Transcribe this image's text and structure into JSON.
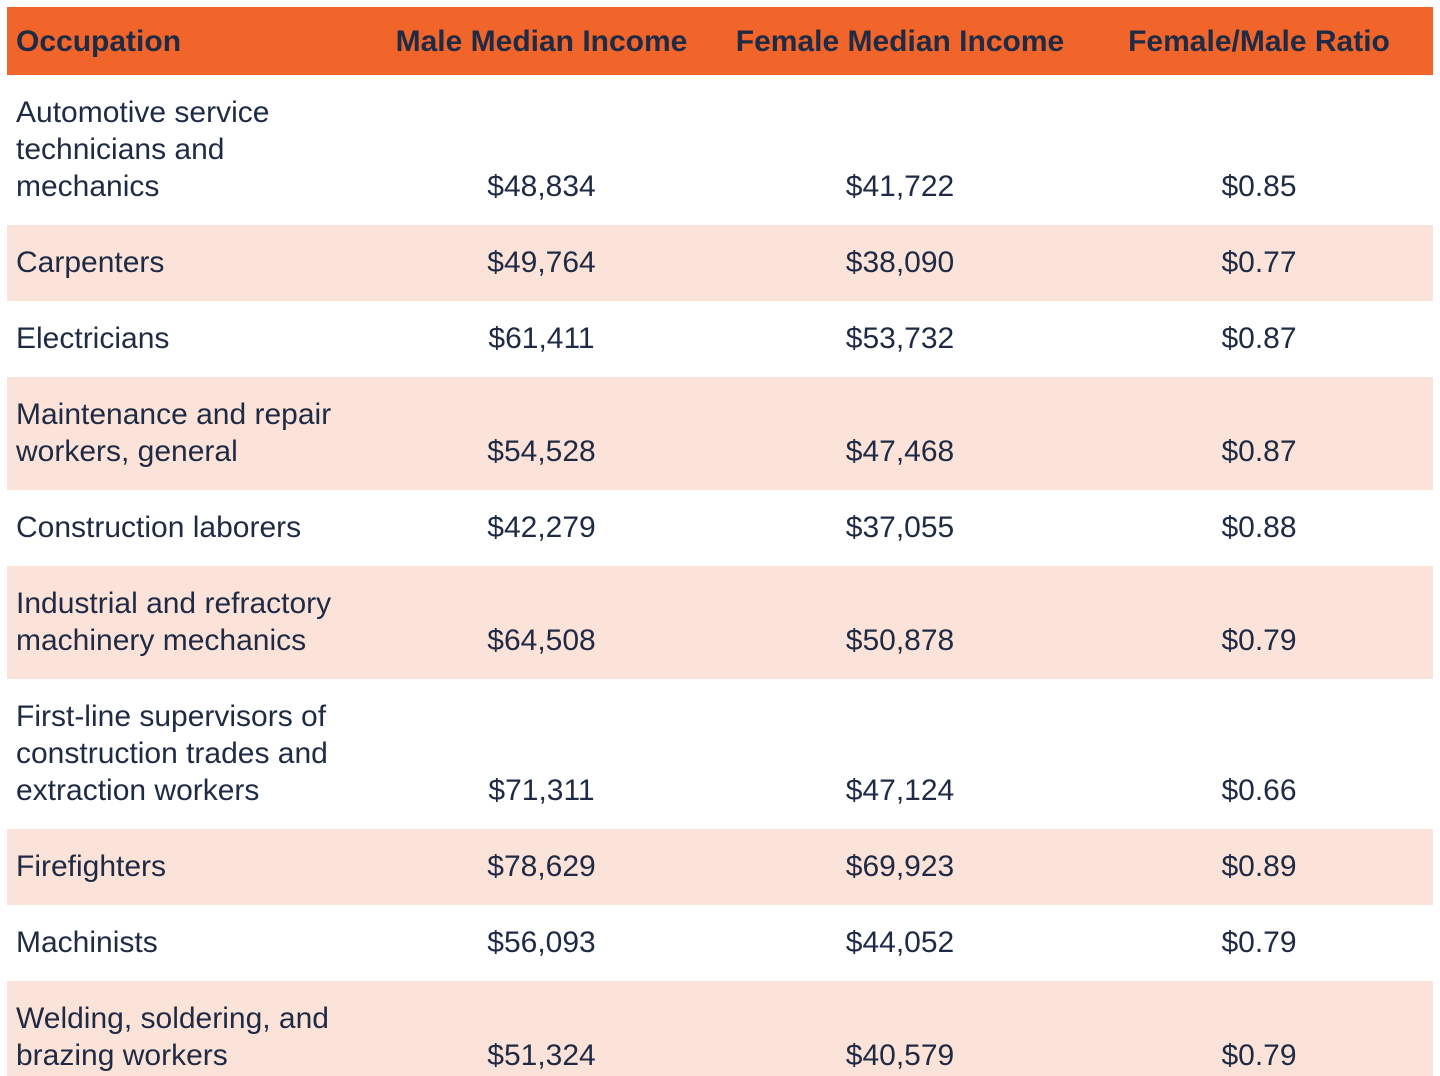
{
  "colors": {
    "header_bg": "#f1652a",
    "row_bg": "#ffffff",
    "row_alt_bg": "#fce3d9",
    "text": "#1f2a44"
  },
  "chart_data": {
    "type": "table",
    "columns": [
      "Occupation",
      "Male Median Income",
      "Female Median Income",
      "Female/Male Ratio"
    ],
    "rows": [
      [
        "Automotive service\ntechnicians and\nmechanics",
        "$48,834",
        "$41,722",
        "$0.85"
      ],
      [
        "Carpenters",
        "$49,764",
        "$38,090",
        "$0.77"
      ],
      [
        "Electricians",
        "$61,411",
        "$53,732",
        "$0.87"
      ],
      [
        "Maintenance and repair\nworkers, general",
        "$54,528",
        "$47,468",
        "$0.87"
      ],
      [
        "Construction laborers",
        "$42,279",
        "$37,055",
        "$0.88"
      ],
      [
        "Industrial and refractory\nmachinery mechanics",
        "$64,508",
        "$50,878",
        "$0.79"
      ],
      [
        "First-line supervisors of\nconstruction trades and\nextraction workers",
        "$71,311",
        "$47,124",
        "$0.66"
      ],
      [
        "Firefighters",
        "$78,629",
        "$69,923",
        "$0.89"
      ],
      [
        "Machinists",
        "$56,093",
        "$44,052",
        "$0.79"
      ],
      [
        "Welding, soldering, and\nbrazing workers",
        "$51,324",
        "$40,579",
        "$0.79"
      ]
    ]
  }
}
